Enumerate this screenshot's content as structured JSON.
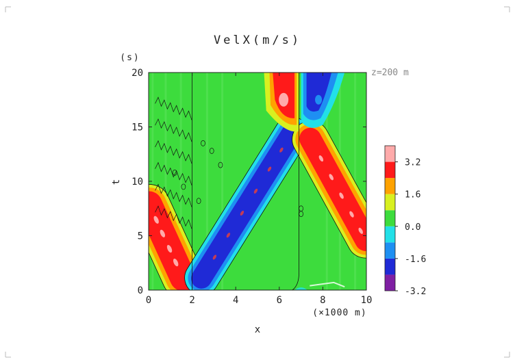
{
  "chart_data": {
    "type": "heatmap",
    "title": "VelX(m/s)",
    "xlabel": "x",
    "x_unit": "(×1000 m)",
    "ylabel": "t",
    "y_unit": "(s)",
    "annotation": "z=200 m",
    "xlim": [
      0,
      10
    ],
    "ylim": [
      0,
      20
    ],
    "x_ticks": [
      "0",
      "2",
      "4",
      "6",
      "8",
      "10"
    ],
    "y_ticks": [
      "0",
      "5",
      "10",
      "15",
      "20"
    ],
    "colorbar": {
      "tick_labels": [
        "3.2",
        "1.6",
        "0.0",
        "-1.6",
        "-3.2"
      ],
      "levels": [
        {
          "color": "#7f1fa3"
        },
        {
          "color": "#1f2ad6"
        },
        {
          "color": "#1e8ff2"
        },
        {
          "color": "#22e0e8"
        },
        {
          "color": "#3ddc3d"
        },
        {
          "color": "#d8f020"
        },
        {
          "color": "#ffa200"
        },
        {
          "color": "#ff1a1a"
        },
        {
          "color": "#ffaaaa"
        }
      ]
    },
    "features": [
      {
        "name": "positive band left",
        "x_start": 0.0,
        "t_start": 8.0,
        "x_end": 1.6,
        "t_end": 1.0,
        "peak": 3.0
      },
      {
        "name": "negative band rising",
        "x_start": 2.4,
        "t_start": 1.0,
        "x_end": 6.6,
        "t_end": 14.5,
        "peak": -3.0
      },
      {
        "name": "positive band right",
        "x_start": 7.4,
        "t_start": 14.0,
        "x_end": 10.0,
        "t_end": 4.5,
        "peak": 3.0
      },
      {
        "name": "positive peak top",
        "x": 6.2,
        "t": 17.5,
        "peak": 3.4
      },
      {
        "name": "negative peak top",
        "x": 7.8,
        "t": 17.5,
        "peak": -3.0
      }
    ]
  }
}
